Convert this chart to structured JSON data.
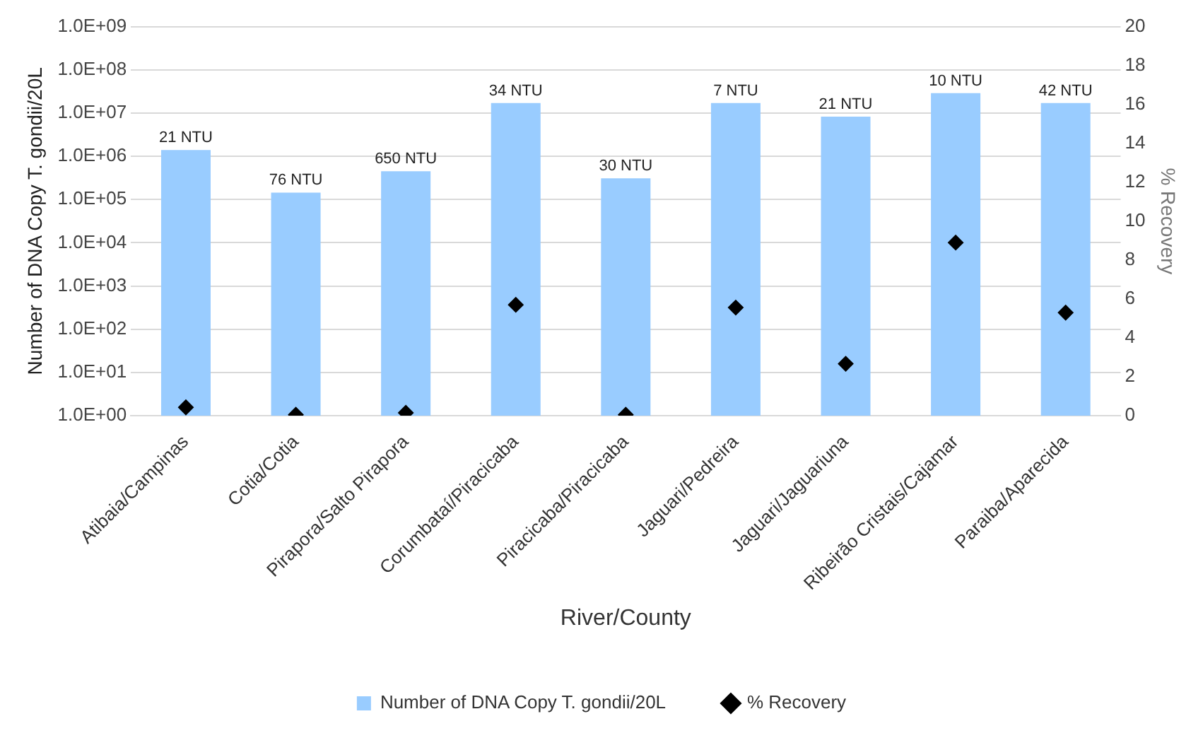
{
  "chart_data": {
    "type": "bar",
    "xlabel": "River/County",
    "ylabel": "Number of DNA Copy T. gondii/20L",
    "y2label": "% Recovery",
    "categories": [
      "Atibaia/Campinas",
      "Cotia/Cotia",
      "Pirapora/Salto Pirapora",
      "Corumbataí/Piracicaba",
      "Piracicaba/Piracicaba",
      "Jaguari/Pedreira",
      "Jaguari/Jaguariuna",
      "Ribeirão Cristais/Cajamar",
      "Paraiba/Aparecida"
    ],
    "series": [
      {
        "name": "Number of DNA Copy T. gondii/20L",
        "color": "#99ccff",
        "values": [
          1400000,
          145000,
          450000,
          17000000,
          310000,
          17000000,
          8300000,
          29000000,
          17000000
        ]
      },
      {
        "name": "% Recovery",
        "type": "scatter",
        "axis": "y2",
        "color": "#000000",
        "marker": "diamond",
        "values": [
          0.43,
          0.05,
          0.15,
          5.7,
          0.05,
          5.56,
          2.67,
          8.9,
          5.3
        ]
      }
    ],
    "annotations": [
      {
        "text": "21 NTU",
        "x": "Atibaia/Campinas",
        "y": 1400000
      },
      {
        "text": "76 NTU",
        "x": "Cotia/Cotia",
        "y": 145000
      },
      {
        "text": "650 NTU",
        "x": "Pirapora/Salto Pirapora",
        "y": 450000
      },
      {
        "text": "34 NTU",
        "x": "Corumbataí/Piracicaba",
        "y": 17000000
      },
      {
        "text": "30 NTU",
        "x": "Piracicaba/Piracicaba",
        "y": 310000
      },
      {
        "text": "7 NTU",
        "x": "Jaguari/Pedreira",
        "y": 17000000
      },
      {
        "text": "21 NTU",
        "x": "Jaguari/Jaguariuna",
        "y": 8300000
      },
      {
        "text": "10 NTU",
        "x": "Ribeirão Cristais/Cajamar",
        "y": 29000000
      },
      {
        "text": "42 NTU",
        "x": "Paraiba/Aparecida",
        "y": 17000000
      }
    ],
    "log": "y",
    "ylim": [
      1,
      1000000000
    ],
    "yticks": [
      {
        "value": 1,
        "label": "1.0E+00"
      },
      {
        "value": 10,
        "label": "1.0E+01"
      },
      {
        "value": 100,
        "label": "1.0E+02"
      },
      {
        "value": 1000,
        "label": "1.0E+03"
      },
      {
        "value": 10000,
        "label": "1.0E+04"
      },
      {
        "value": 100000,
        "label": "1.0E+05"
      },
      {
        "value": 1000000,
        "label": "1.0E+06"
      },
      {
        "value": 10000000,
        "label": "1.0E+07"
      },
      {
        "value": 100000000,
        "label": "1.0E+08"
      },
      {
        "value": 1000000000,
        "label": "1.0E+09"
      }
    ],
    "y2lim": [
      0,
      20
    ],
    "y2ticks": [
      0,
      2,
      4,
      6,
      8,
      10,
      12,
      14,
      16,
      18,
      20
    ],
    "grid": "y",
    "legend": "bottom"
  }
}
